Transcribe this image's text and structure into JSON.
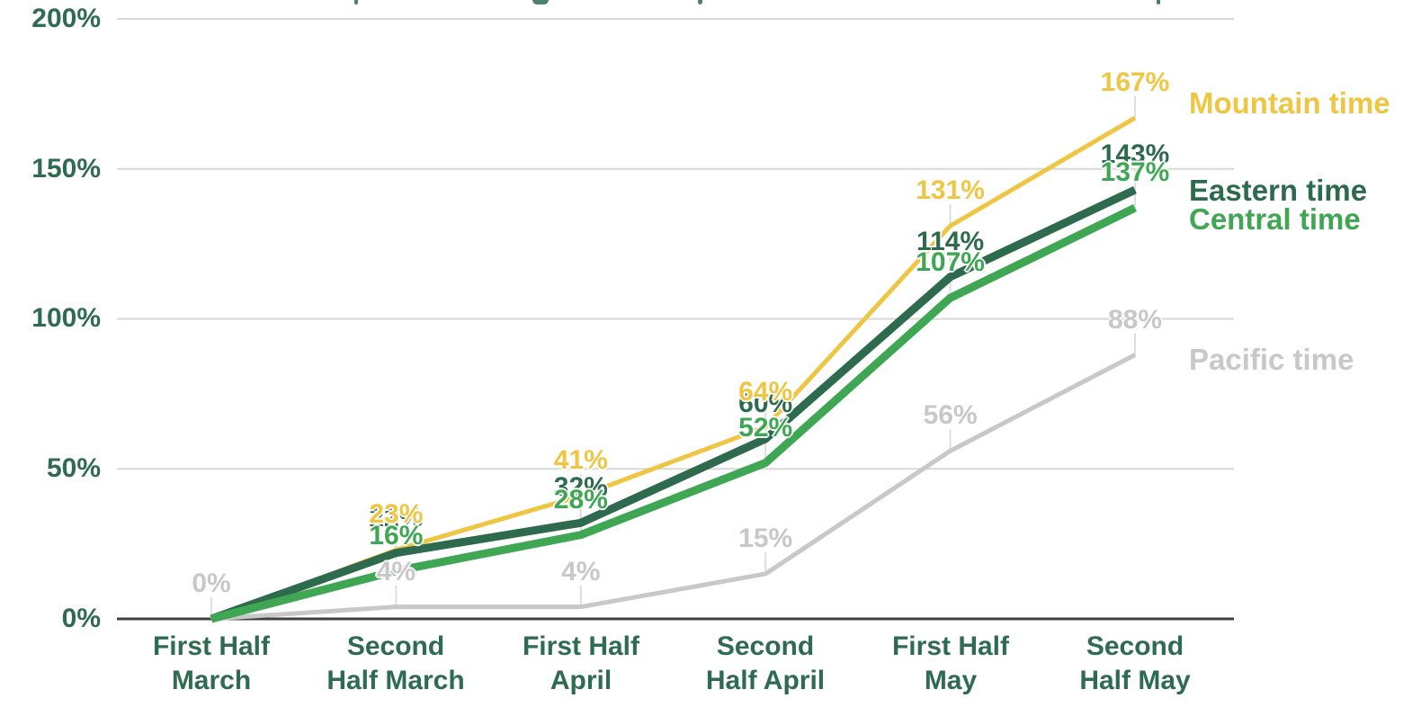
{
  "page": {
    "background": "#ffffff",
    "axis_color": "#3f3f3f",
    "gridline_color": "#d8d8d8",
    "leader_color": "#dedede"
  },
  "chart_data": {
    "type": "line",
    "ylim": [
      0,
      200
    ],
    "grid": "horizontal",
    "legend_position": "right-of-line-ends",
    "y_ticks": [
      {
        "label": "200%",
        "value": 200
      },
      {
        "label": "150%",
        "value": 150
      },
      {
        "label": "100%",
        "value": 100
      },
      {
        "label": "50%",
        "value": 50
      },
      {
        "label": "0%",
        "value": 0
      }
    ],
    "x_tick_labels": [
      [
        "First Half",
        "March"
      ],
      [
        "Second",
        "Half March"
      ],
      [
        "First Half",
        "April"
      ],
      [
        "Second",
        "Half April"
      ],
      [
        "First Half",
        "May"
      ],
      [
        "Second",
        "Half May"
      ]
    ],
    "series": [
      {
        "name": "Mountain time",
        "color": "#eec643",
        "line_width": 5,
        "values": [
          0,
          23,
          41,
          64,
          131,
          167
        ],
        "point_labels": [
          null,
          "23%",
          "41%",
          "64%",
          "131%",
          "167%"
        ]
      },
      {
        "name": "Eastern time",
        "color": "#2d6a4e",
        "line_width": 9,
        "values": [
          0,
          22,
          32,
          60,
          114,
          143
        ],
        "point_labels": [
          null,
          "22%",
          "32%",
          "60%",
          "114%",
          "143%"
        ]
      },
      {
        "name": "Central time",
        "color": "#3fa653",
        "line_width": 9,
        "values": [
          0,
          16,
          28,
          52,
          107,
          137
        ],
        "point_labels": [
          null,
          "16%",
          "28%",
          "52%",
          "107%",
          "137%"
        ]
      },
      {
        "name": "Pacific time",
        "color": "#c8c8c8",
        "line_width": 5,
        "values": [
          0,
          4,
          4,
          15,
          56,
          88
        ],
        "point_labels": [
          "0%",
          "4%",
          "4%",
          "15%",
          "56%",
          "88%"
        ]
      }
    ]
  }
}
